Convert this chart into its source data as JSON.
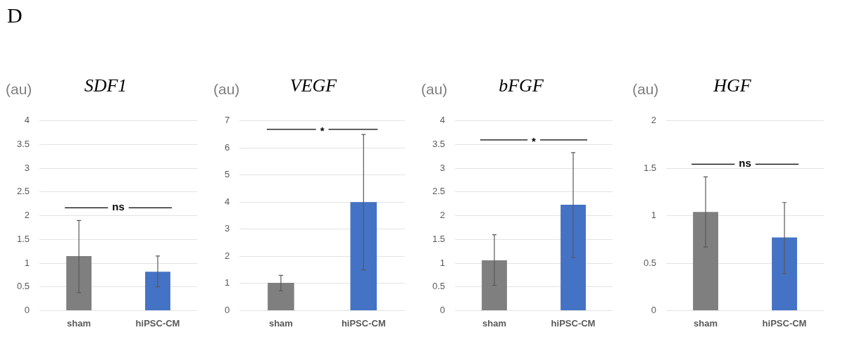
{
  "chart_data": [
    {
      "type": "other",
      "title": "D"
    },
    {
      "type": "bar",
      "title": "SDF1",
      "ylabel": "(au)",
      "categories": [
        "sham",
        "hiPSC-CM"
      ],
      "values": [
        1.15,
        0.82
      ],
      "colors": [
        "#7f7f7f",
        "#4472c4"
      ],
      "errors": [
        [
          0.38,
          1.9
        ],
        [
          0.5,
          1.15
        ]
      ],
      "ylim": [
        0,
        4
      ],
      "yticks": [
        0,
        0.5,
        1,
        1.5,
        2,
        2.5,
        3,
        3.5,
        4
      ],
      "grid": "y",
      "annotations": [
        "ns"
      ]
    },
    {
      "type": "bar",
      "title": "VEGF",
      "ylabel": "(au)",
      "categories": [
        "sham",
        "hiPSC-CM"
      ],
      "values": [
        1.02,
        4.0
      ],
      "colors": [
        "#7f7f7f",
        "#4472c4"
      ],
      "errors": [
        [
          0.73,
          1.3
        ],
        [
          1.5,
          6.5
        ]
      ],
      "ylim": [
        0,
        7
      ],
      "yticks": [
        0,
        1,
        2,
        3,
        4,
        5,
        6,
        7
      ],
      "grid": "y",
      "annotations": [
        "*"
      ]
    },
    {
      "type": "bar",
      "title": "bFGF",
      "ylabel": "(au)",
      "categories": [
        "sham",
        "hiPSC-CM"
      ],
      "values": [
        1.06,
        2.23
      ],
      "colors": [
        "#7f7f7f",
        "#4472c4"
      ],
      "errors": [
        [
          0.53,
          1.6
        ],
        [
          1.12,
          3.33
        ]
      ],
      "ylim": [
        0,
        4
      ],
      "yticks": [
        0,
        0.5,
        1,
        1.5,
        2,
        2.5,
        3,
        3.5,
        4
      ],
      "grid": "y",
      "annotations": [
        "*"
      ]
    },
    {
      "type": "bar",
      "title": "HGF",
      "ylabel": "(au)",
      "categories": [
        "sham",
        "hiPSC-CM"
      ],
      "values": [
        1.04,
        0.77
      ],
      "colors": [
        "#7f7f7f",
        "#4472c4"
      ],
      "errors": [
        [
          0.67,
          1.41
        ],
        [
          0.39,
          1.14
        ]
      ],
      "ylim": [
        0,
        2
      ],
      "yticks": [
        0,
        0.5,
        1,
        1.5,
        2
      ],
      "grid": "y",
      "annotations": [
        "ns"
      ]
    }
  ]
}
